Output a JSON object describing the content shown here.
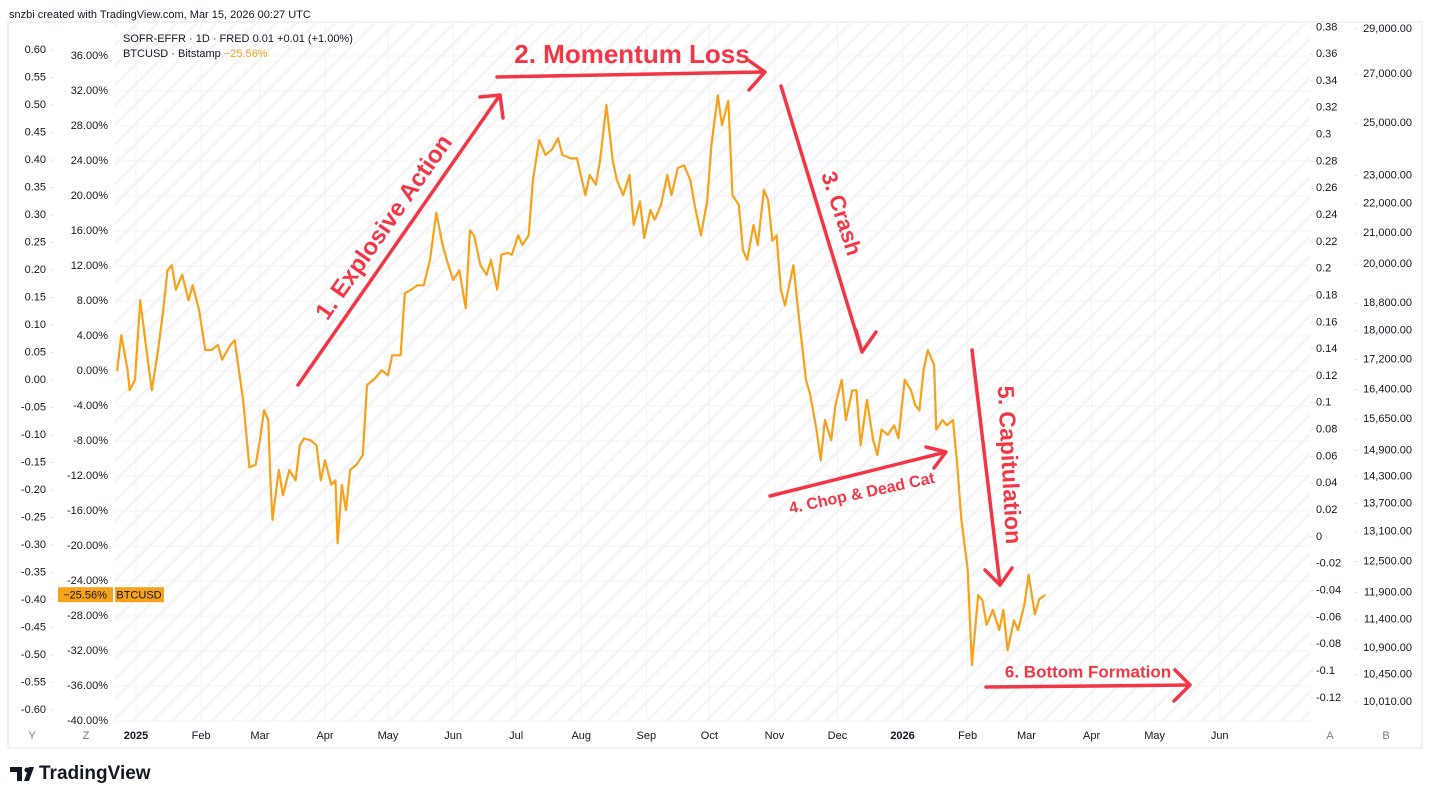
{
  "header": "snzbi created with TradingView.com, Mar 15, 2026 00:27 UTC",
  "legend": {
    "line1": "SOFR-EFFR · 1D · FRED",
    "line1_value": "0.01",
    "line1_change": "+0.01 (+1.00%)",
    "line2": "BTCUSD · Bitstamp",
    "line2_change": "−25.56%",
    "tag": "BTCUSD"
  },
  "buttons": [
    "Y",
    "Z",
    "A",
    "B"
  ],
  "brand": "TradingView",
  "chart_data": {
    "type": "line",
    "x": [
      -9,
      -7,
      -4,
      -3,
      -0.5,
      2,
      5,
      7.5,
      10.5,
      13,
      15,
      17,
      19,
      22,
      25,
      27,
      30,
      33,
      36,
      39,
      41,
      45,
      47,
      51,
      54,
      57,
      59,
      61,
      63,
      64,
      65,
      68,
      70,
      73,
      76,
      78,
      80,
      83,
      86,
      88,
      90,
      93,
      95,
      96,
      98,
      100,
      102,
      105,
      108,
      110,
      114,
      117,
      120,
      122,
      126,
      128,
      131,
      134,
      137,
      140,
      143,
      146,
      148,
      151,
      154,
      157,
      159,
      161,
      164,
      167,
      169,
      172,
      174,
      177,
      179,
      182,
      184,
      187,
      189,
      192,
      195,
      198,
      201,
      203,
      207,
      210,
      214,
      216,
      219,
      221,
      224,
      227,
      229,
      232,
      235,
      237,
      240,
      242,
      245,
      247,
      250,
      253,
      255,
      258,
      261,
      264,
      266,
      269,
      272,
      274,
      277,
      279,
      282,
      284,
      287,
      289,
      291,
      294,
      296,
      299,
      301,
      303,
      305,
      307,
      309,
      311,
      313,
      316,
      319,
      321,
      324,
      326,
      328,
      331,
      333,
      336,
      338,
      341,
      343,
      345,
      348,
      351,
      353,
      355,
      358,
      361,
      363,
      366,
      369,
      371,
      373,
      375,
      377,
      380,
      381,
      384,
      386,
      389,
      391,
      393,
      396,
      398,
      401,
      403,
      405,
      408,
      411,
      413,
      415,
      418,
      420,
      423,
      425,
      428,
      430,
      433
    ],
    "series": [
      {
        "name": "BTCUSD",
        "color": "#f7a21b",
        "values": [
          0,
          4.1,
          0.1,
          -2.2,
          -1.0,
          8.1,
          2.4,
          -2.2,
          2.4,
          7.0,
          11.5,
          12.1,
          9.3,
          11.0,
          8.1,
          9.8,
          7.0,
          2.4,
          2.4,
          3.0,
          1.3,
          3.0,
          3.5,
          -3.3,
          -11.0,
          -10.7,
          -7.9,
          -4.5,
          -5.6,
          -12.5,
          -17.0,
          -11.3,
          -14.2,
          -11.3,
          -12.5,
          -8.5,
          -7.7,
          -7.9,
          -8.5,
          -12.5,
          -10.2,
          -13.0,
          -12.5,
          -19.7,
          -13.0,
          -15.9,
          -11.3,
          -10.7,
          -9.6,
          -1.6,
          -0.8,
          0.1,
          -0.5,
          1.8,
          1.8,
          8.9,
          9.3,
          9.8,
          9.8,
          12.7,
          18.1,
          14.4,
          12.7,
          10.4,
          11.5,
          7.2,
          16.1,
          15.5,
          12.1,
          11.0,
          12.7,
          9.3,
          13.3,
          13.5,
          13.3,
          15.5,
          14.4,
          15.5,
          21.8,
          26.4,
          24.7,
          25.3,
          26.6,
          24.7,
          24.3,
          24.3,
          20.1,
          22.4,
          21.3,
          24.1,
          30.4,
          24.1,
          21.8,
          20.1,
          22.4,
          16.7,
          19.4,
          15.2,
          18.4,
          17.3,
          19.0,
          22.4,
          20.1,
          23.2,
          23.5,
          21.8,
          19.0,
          15.5,
          19.4,
          25.8,
          31.5,
          28.1,
          30.9,
          20.1,
          19.0,
          13.8,
          12.7,
          16.7,
          14.4,
          20.7,
          19.5,
          14.9,
          15.5,
          9.3,
          7.5,
          9.8,
          12.1,
          5.3,
          -1.0,
          -2.7,
          -6.7,
          -10.2,
          -5.6,
          -7.9,
          -3.9,
          -1.0,
          -5.6,
          -2.2,
          -2.2,
          -8.5,
          -3.3,
          -7.9,
          -9.6,
          -6.7,
          -7.3,
          -6.2,
          -7.7,
          -1.0,
          -2.2,
          -3.9,
          -4.5,
          0.1,
          2.4,
          0.7,
          -6.7,
          -5.6,
          -6.2,
          -5.6,
          -10.7,
          -17.0,
          -22.7,
          -33.6,
          -25.6,
          -26.2,
          -29.0,
          -27.3,
          -29.6,
          -27.3,
          -31.9,
          -28.5,
          -29.6,
          -26.7,
          -23.3,
          -27.8,
          -26.1,
          -25.56
        ]
      }
    ],
    "xlim": [
      -10,
      559
    ],
    "xticks": [
      {
        "value": 0,
        "label": "2025"
      },
      {
        "value": 31,
        "label": "Feb"
      },
      {
        "value": 59,
        "label": "Mar"
      },
      {
        "value": 90,
        "label": "Apr"
      },
      {
        "value": 120,
        "label": "May"
      },
      {
        "value": 151,
        "label": "Jun"
      },
      {
        "value": 181,
        "label": "Jul"
      },
      {
        "value": 212,
        "label": "Aug"
      },
      {
        "value": 243,
        "label": "Sep"
      },
      {
        "value": 273,
        "label": "Oct"
      },
      {
        "value": 304,
        "label": "Nov"
      },
      {
        "value": 334,
        "label": "Dec"
      },
      {
        "value": 365,
        "label": "2026"
      },
      {
        "value": 396,
        "label": "Feb"
      },
      {
        "value": 424,
        "label": "Mar"
      },
      {
        "value": 455,
        "label": "Apr"
      },
      {
        "value": 485,
        "label": "May"
      },
      {
        "value": 516,
        "label": "Jun"
      }
    ],
    "ylim": [
      -40.11,
      39.89
    ],
    "yticks": [
      {
        "value": 36,
        "label": "36.00%"
      },
      {
        "value": 32,
        "label": "32.00%"
      },
      {
        "value": 28,
        "label": "28.00%"
      },
      {
        "value": 24,
        "label": "24.00%"
      },
      {
        "value": 20,
        "label": "20.00%"
      },
      {
        "value": 16,
        "label": "16.00%"
      },
      {
        "value": 12,
        "label": "12.00%"
      },
      {
        "value": 8,
        "label": "8.00%"
      },
      {
        "value": 4,
        "label": "4.00%"
      },
      {
        "value": 0,
        "label": "0.00%"
      },
      {
        "value": -4,
        "label": "-4.00%"
      },
      {
        "value": -8,
        "label": "-8.00%"
      },
      {
        "value": -12,
        "label": "-12.00%"
      },
      {
        "value": -16,
        "label": "-16.00%"
      },
      {
        "value": -20,
        "label": "-20.00%"
      },
      {
        "value": -24,
        "label": "-24.00%"
      },
      {
        "value": -28,
        "label": "-28.00%"
      },
      {
        "value": -32,
        "label": "-32.00%"
      },
      {
        "value": -36,
        "label": "-36.00%"
      },
      {
        "value": -40,
        "label": "-40.00%"
      }
    ],
    "y0lim": [
      -0.622,
      0.651
    ],
    "y0ticks": [
      {
        "value": 0.6,
        "label": "0.60"
      },
      {
        "value": 0.55,
        "label": "0.55"
      },
      {
        "value": 0.5,
        "label": "0.50"
      },
      {
        "value": 0.45,
        "label": "0.45"
      },
      {
        "value": 0.4,
        "label": "0.40"
      },
      {
        "value": 0.35,
        "label": "0.35"
      },
      {
        "value": 0.3,
        "label": "0.30"
      },
      {
        "value": 0.25,
        "label": "0.25"
      },
      {
        "value": 0.2,
        "label": "0.20"
      },
      {
        "value": 0.15,
        "label": "0.15"
      },
      {
        "value": 0.1,
        "label": "0.10"
      },
      {
        "value": 0.05,
        "label": "0.05"
      },
      {
        "value": 0,
        "label": "0.00"
      },
      {
        "value": -0.05,
        "label": "-0.05"
      },
      {
        "value": -0.1,
        "label": "-0.10"
      },
      {
        "value": -0.15,
        "label": "-0.15"
      },
      {
        "value": -0.2,
        "label": "-0.20"
      },
      {
        "value": -0.25,
        "label": "-0.25"
      },
      {
        "value": -0.3,
        "label": "-0.30"
      },
      {
        "value": -0.35,
        "label": "-0.35"
      },
      {
        "value": -0.4,
        "label": "-0.40"
      },
      {
        "value": -0.45,
        "label": "-0.45"
      },
      {
        "value": -0.5,
        "label": "-0.50"
      },
      {
        "value": -0.55,
        "label": "-0.55"
      },
      {
        "value": -0.6,
        "label": "-0.60"
      }
    ],
    "y2lim": [
      -0.138,
      0.384
    ],
    "y2ticks": [
      0.38,
      0.36,
      0.34,
      0.32,
      0.3,
      0.28,
      0.26,
      0.24,
      0.22,
      0.2,
      0.18,
      0.16,
      0.14,
      0.12,
      0.1,
      0.08,
      0.06,
      0.04,
      0.02,
      0,
      -0.02,
      -0.04,
      -0.06,
      -0.08,
      -0.1,
      -0.12
    ],
    "y3lim": [
      9699,
      29325
    ],
    "y3log": true,
    "y3ticks": [
      {
        "value": 29000,
        "label": "29,000.00"
      },
      {
        "value": 27000,
        "label": "27,000.00"
      },
      {
        "value": 25000,
        "label": "25,000.00"
      },
      {
        "value": 23000,
        "label": "23,000.00"
      },
      {
        "value": 22000,
        "label": "22,000.00"
      },
      {
        "value": 21000,
        "label": "21,000.00"
      },
      {
        "value": 20000,
        "label": "20,000.00"
      },
      {
        "value": 18800,
        "label": "18,800.00"
      },
      {
        "value": 18000,
        "label": "18,000.00"
      },
      {
        "value": 17200,
        "label": "17,200.00"
      },
      {
        "value": 16400,
        "label": "16,400.00"
      },
      {
        "value": 15650,
        "label": "15,650.00"
      },
      {
        "value": 14900,
        "label": "14,900.00"
      },
      {
        "value": 14300,
        "label": "14,300.00"
      },
      {
        "value": 13700,
        "label": "13,700.00"
      },
      {
        "value": 13100,
        "label": "13,100.00"
      },
      {
        "value": 12500,
        "label": "12,500.00"
      },
      {
        "value": 11900,
        "label": "11,900.00"
      },
      {
        "value": 11400,
        "label": "11,400.00"
      },
      {
        "value": 10900,
        "label": "10,900.00"
      },
      {
        "value": 10450,
        "label": "10,450.00"
      },
      {
        "value": 10010,
        "label": "10,010.00"
      }
    ],
    "grid": true,
    "annotations": [
      "1. Explosive Action",
      "2. Momentum Loss",
      "3. Crash",
      "4. Chop & Dead Cat",
      "5. Capitulation",
      "6. Bottom Formation"
    ]
  }
}
